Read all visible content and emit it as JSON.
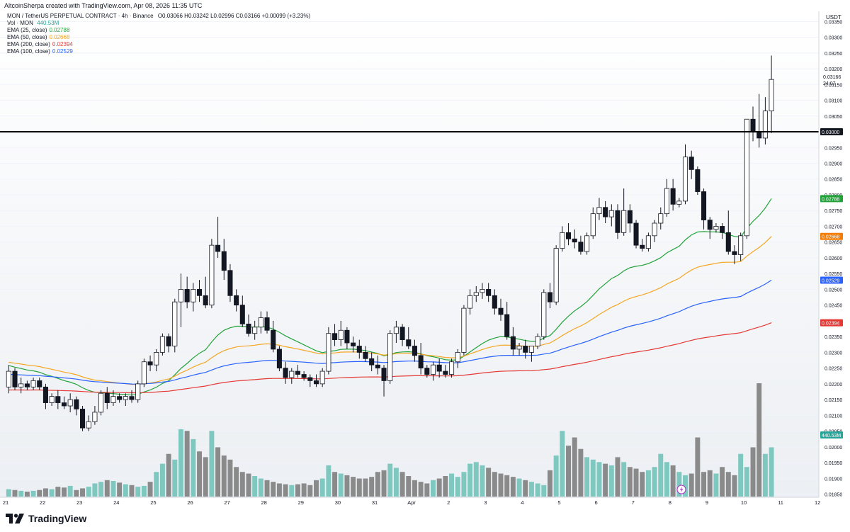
{
  "header": {
    "text": "AltcoinSherpa created with TradingView.com, Apr 08, 2026 11:35 UTC"
  },
  "legend": {
    "symbol_line": "MON / TetherUS PERPETUAL CONTRACT · 4h · Binance",
    "ohlc": "O0.03066 H0.03242 L0.02996 C0.03166 +0.00099 (+3.23%)",
    "volume_label": "Vol · MON",
    "volume_value": "440.53M",
    "ema_rows": [
      {
        "label": "EMA (25, close)",
        "value": "0.02788",
        "color": "#22a33a"
      },
      {
        "label": "EMA (50, close)",
        "value": "0.02668",
        "color": "#f5a623"
      },
      {
        "label": "EMA (200, close)",
        "value": "0.02394",
        "color": "#e53935"
      },
      {
        "label": "EMA (100, close)",
        "value": "0.02529",
        "color": "#2962ff"
      }
    ]
  },
  "axis": {
    "currency": "USDT",
    "price_ticks": [
      "0.03350",
      "0.03300",
      "0.03250",
      "0.03200",
      "0.03150",
      "0.03100",
      "0.03050",
      "0.02950",
      "0.02900",
      "0.02850",
      "0.02800",
      "0.02750",
      "0.02700",
      "0.02650",
      "0.02600",
      "0.02550",
      "0.02500",
      "0.02450",
      "0.02400",
      "0.02350",
      "0.02300",
      "0.02250",
      "0.02200",
      "0.02150",
      "0.02100",
      "0.02050",
      "0.02000",
      "0.01950",
      "0.01900",
      "0.01850"
    ],
    "date_ticks": [
      "21",
      "22",
      "23",
      "24",
      "25",
      "26",
      "27",
      "28",
      "29",
      "30",
      "31",
      "Apr",
      "2",
      "3",
      "4",
      "5",
      "6",
      "7",
      "8",
      "9",
      "10",
      "11",
      "12"
    ],
    "current_price": "0.03166",
    "countdown": "24:07",
    "level_price": "0.03000",
    "badges": [
      {
        "text": "0.02788",
        "color": "#22a33a",
        "price": 0.02788
      },
      {
        "text": "0.02668",
        "color": "#f57c00",
        "price": 0.02668
      },
      {
        "text": "0.02529",
        "color": "#2962ff",
        "price": 0.02529
      },
      {
        "text": "0.02394",
        "color": "#e53935",
        "price": 0.02394
      }
    ],
    "volume_badge": "440.53M"
  },
  "brand": {
    "name": "TradingView"
  },
  "chart_data": {
    "type": "candlestick",
    "timeframe": "4h",
    "horizontal_level": 0.03,
    "ylim": [
      0.0184,
      0.0338
    ],
    "candles": [
      {
        "o": 0.0219,
        "h": 0.0226,
        "l": 0.0217,
        "c": 0.0224
      },
      {
        "o": 0.0224,
        "h": 0.0225,
        "l": 0.0218,
        "c": 0.0219
      },
      {
        "o": 0.0219,
        "h": 0.0222,
        "l": 0.0217,
        "c": 0.022
      },
      {
        "o": 0.022,
        "h": 0.0221,
        "l": 0.0218,
        "c": 0.0219
      },
      {
        "o": 0.0219,
        "h": 0.0222,
        "l": 0.0218,
        "c": 0.0221
      },
      {
        "o": 0.0221,
        "h": 0.0222,
        "l": 0.0218,
        "c": 0.0219
      },
      {
        "o": 0.0219,
        "h": 0.022,
        "l": 0.0212,
        "c": 0.0214
      },
      {
        "o": 0.0214,
        "h": 0.0217,
        "l": 0.0213,
        "c": 0.0216
      },
      {
        "o": 0.0216,
        "h": 0.0218,
        "l": 0.0212,
        "c": 0.0214
      },
      {
        "o": 0.0214,
        "h": 0.0216,
        "l": 0.0212,
        "c": 0.0213
      },
      {
        "o": 0.0213,
        "h": 0.0217,
        "l": 0.0211,
        "c": 0.0215
      },
      {
        "o": 0.0215,
        "h": 0.0216,
        "l": 0.021,
        "c": 0.0212
      },
      {
        "o": 0.0212,
        "h": 0.0213,
        "l": 0.0205,
        "c": 0.0206
      },
      {
        "o": 0.0206,
        "h": 0.021,
        "l": 0.0205,
        "c": 0.0208
      },
      {
        "o": 0.0208,
        "h": 0.0213,
        "l": 0.0207,
        "c": 0.0211
      },
      {
        "o": 0.0211,
        "h": 0.0218,
        "l": 0.021,
        "c": 0.0217
      },
      {
        "o": 0.0217,
        "h": 0.0219,
        "l": 0.0212,
        "c": 0.0214
      },
      {
        "o": 0.0214,
        "h": 0.0218,
        "l": 0.0213,
        "c": 0.0216
      },
      {
        "o": 0.0216,
        "h": 0.0217,
        "l": 0.0214,
        "c": 0.0215
      },
      {
        "o": 0.0215,
        "h": 0.0217,
        "l": 0.0213,
        "c": 0.0216
      },
      {
        "o": 0.0216,
        "h": 0.0218,
        "l": 0.0214,
        "c": 0.0215
      },
      {
        "o": 0.0215,
        "h": 0.0221,
        "l": 0.0214,
        "c": 0.022
      },
      {
        "o": 0.022,
        "h": 0.0228,
        "l": 0.0219,
        "c": 0.0227
      },
      {
        "o": 0.0227,
        "h": 0.0229,
        "l": 0.0224,
        "c": 0.0226
      },
      {
        "o": 0.0226,
        "h": 0.0231,
        "l": 0.0224,
        "c": 0.023
      },
      {
        "o": 0.023,
        "h": 0.0236,
        "l": 0.0229,
        "c": 0.0235
      },
      {
        "o": 0.0235,
        "h": 0.0236,
        "l": 0.023,
        "c": 0.0232
      },
      {
        "o": 0.0232,
        "h": 0.0247,
        "l": 0.023,
        "c": 0.0246
      },
      {
        "o": 0.0246,
        "h": 0.0255,
        "l": 0.0238,
        "c": 0.025
      },
      {
        "o": 0.025,
        "h": 0.0254,
        "l": 0.0244,
        "c": 0.0246
      },
      {
        "o": 0.0246,
        "h": 0.0252,
        "l": 0.0243,
        "c": 0.025
      },
      {
        "o": 0.025,
        "h": 0.0253,
        "l": 0.0246,
        "c": 0.0248
      },
      {
        "o": 0.0248,
        "h": 0.0254,
        "l": 0.0244,
        "c": 0.0245
      },
      {
        "o": 0.0245,
        "h": 0.0266,
        "l": 0.0244,
        "c": 0.0264
      },
      {
        "o": 0.0264,
        "h": 0.0273,
        "l": 0.026,
        "c": 0.0262
      },
      {
        "o": 0.0262,
        "h": 0.0266,
        "l": 0.0253,
        "c": 0.0256
      },
      {
        "o": 0.0256,
        "h": 0.0258,
        "l": 0.0246,
        "c": 0.0248
      },
      {
        "o": 0.0248,
        "h": 0.025,
        "l": 0.0243,
        "c": 0.0245
      },
      {
        "o": 0.0245,
        "h": 0.0248,
        "l": 0.0238,
        "c": 0.0239
      },
      {
        "o": 0.0239,
        "h": 0.0242,
        "l": 0.0235,
        "c": 0.0236
      },
      {
        "o": 0.0236,
        "h": 0.024,
        "l": 0.0234,
        "c": 0.0238
      },
      {
        "o": 0.0238,
        "h": 0.0243,
        "l": 0.0236,
        "c": 0.0241
      },
      {
        "o": 0.0241,
        "h": 0.0243,
        "l": 0.0236,
        "c": 0.0237
      },
      {
        "o": 0.0237,
        "h": 0.024,
        "l": 0.023,
        "c": 0.0231
      },
      {
        "o": 0.0231,
        "h": 0.0232,
        "l": 0.0224,
        "c": 0.0225
      },
      {
        "o": 0.0225,
        "h": 0.0227,
        "l": 0.022,
        "c": 0.0222
      },
      {
        "o": 0.0222,
        "h": 0.0225,
        "l": 0.022,
        "c": 0.0224
      },
      {
        "o": 0.0224,
        "h": 0.0226,
        "l": 0.0222,
        "c": 0.0223
      },
      {
        "o": 0.0223,
        "h": 0.0224,
        "l": 0.0221,
        "c": 0.0222
      },
      {
        "o": 0.0222,
        "h": 0.0223,
        "l": 0.0219,
        "c": 0.0221
      },
      {
        "o": 0.0221,
        "h": 0.0223,
        "l": 0.0219,
        "c": 0.022
      },
      {
        "o": 0.022,
        "h": 0.0225,
        "l": 0.0219,
        "c": 0.0224
      },
      {
        "o": 0.0224,
        "h": 0.0238,
        "l": 0.0223,
        "c": 0.0236
      },
      {
        "o": 0.0236,
        "h": 0.0239,
        "l": 0.0232,
        "c": 0.0234
      },
      {
        "o": 0.0234,
        "h": 0.024,
        "l": 0.0232,
        "c": 0.0237
      },
      {
        "o": 0.0237,
        "h": 0.0238,
        "l": 0.0231,
        "c": 0.0233
      },
      {
        "o": 0.0233,
        "h": 0.0235,
        "l": 0.023,
        "c": 0.0232
      },
      {
        "o": 0.0232,
        "h": 0.0234,
        "l": 0.0228,
        "c": 0.023
      },
      {
        "o": 0.023,
        "h": 0.0232,
        "l": 0.0227,
        "c": 0.0228
      },
      {
        "o": 0.0228,
        "h": 0.023,
        "l": 0.0224,
        "c": 0.0226
      },
      {
        "o": 0.0226,
        "h": 0.0229,
        "l": 0.0223,
        "c": 0.0225
      },
      {
        "o": 0.0225,
        "h": 0.0226,
        "l": 0.0216,
        "c": 0.0221
      },
      {
        "o": 0.0221,
        "h": 0.0237,
        "l": 0.022,
        "c": 0.0236
      },
      {
        "o": 0.0236,
        "h": 0.024,
        "l": 0.0233,
        "c": 0.0238
      },
      {
        "o": 0.0238,
        "h": 0.0239,
        "l": 0.0232,
        "c": 0.0234
      },
      {
        "o": 0.0234,
        "h": 0.0238,
        "l": 0.0231,
        "c": 0.0232
      },
      {
        "o": 0.0232,
        "h": 0.0234,
        "l": 0.0227,
        "c": 0.0229
      },
      {
        "o": 0.0229,
        "h": 0.0233,
        "l": 0.0223,
        "c": 0.0225
      },
      {
        "o": 0.0225,
        "h": 0.0226,
        "l": 0.0222,
        "c": 0.0223
      },
      {
        "o": 0.0223,
        "h": 0.0227,
        "l": 0.0221,
        "c": 0.0226
      },
      {
        "o": 0.0226,
        "h": 0.0228,
        "l": 0.0222,
        "c": 0.0224
      },
      {
        "o": 0.0224,
        "h": 0.0226,
        "l": 0.0222,
        "c": 0.0223
      },
      {
        "o": 0.0223,
        "h": 0.0228,
        "l": 0.0222,
        "c": 0.0227
      },
      {
        "o": 0.0227,
        "h": 0.0231,
        "l": 0.0225,
        "c": 0.023
      },
      {
        "o": 0.023,
        "h": 0.0245,
        "l": 0.0229,
        "c": 0.0244
      },
      {
        "o": 0.0244,
        "h": 0.025,
        "l": 0.0242,
        "c": 0.0248
      },
      {
        "o": 0.0248,
        "h": 0.0251,
        "l": 0.0246,
        "c": 0.0249
      },
      {
        "o": 0.0249,
        "h": 0.0252,
        "l": 0.0247,
        "c": 0.025
      },
      {
        "o": 0.025,
        "h": 0.0252,
        "l": 0.0246,
        "c": 0.0248
      },
      {
        "o": 0.0248,
        "h": 0.025,
        "l": 0.0242,
        "c": 0.0244
      },
      {
        "o": 0.0244,
        "h": 0.0247,
        "l": 0.024,
        "c": 0.0242
      },
      {
        "o": 0.0242,
        "h": 0.0246,
        "l": 0.0234,
        "c": 0.0235
      },
      {
        "o": 0.0235,
        "h": 0.0238,
        "l": 0.0229,
        "c": 0.0231
      },
      {
        "o": 0.0231,
        "h": 0.0233,
        "l": 0.0229,
        "c": 0.0232
      },
      {
        "o": 0.0232,
        "h": 0.0234,
        "l": 0.0228,
        "c": 0.023
      },
      {
        "o": 0.023,
        "h": 0.0232,
        "l": 0.0227,
        "c": 0.0232
      },
      {
        "o": 0.0232,
        "h": 0.0236,
        "l": 0.0231,
        "c": 0.0235
      },
      {
        "o": 0.0235,
        "h": 0.025,
        "l": 0.0234,
        "c": 0.0249
      },
      {
        "o": 0.0249,
        "h": 0.0252,
        "l": 0.0244,
        "c": 0.0246
      },
      {
        "o": 0.0246,
        "h": 0.0264,
        "l": 0.0245,
        "c": 0.0263
      },
      {
        "o": 0.0263,
        "h": 0.027,
        "l": 0.0262,
        "c": 0.0268
      },
      {
        "o": 0.0268,
        "h": 0.0271,
        "l": 0.0264,
        "c": 0.0266
      },
      {
        "o": 0.0266,
        "h": 0.0269,
        "l": 0.0263,
        "c": 0.0265
      },
      {
        "o": 0.0265,
        "h": 0.0267,
        "l": 0.0261,
        "c": 0.0262
      },
      {
        "o": 0.0262,
        "h": 0.0268,
        "l": 0.0261,
        "c": 0.0267
      },
      {
        "o": 0.0267,
        "h": 0.0276,
        "l": 0.0266,
        "c": 0.0274
      },
      {
        "o": 0.0274,
        "h": 0.0279,
        "l": 0.0272,
        "c": 0.0276
      },
      {
        "o": 0.0276,
        "h": 0.0278,
        "l": 0.0271,
        "c": 0.0273
      },
      {
        "o": 0.0273,
        "h": 0.0277,
        "l": 0.027,
        "c": 0.0275
      },
      {
        "o": 0.0275,
        "h": 0.0277,
        "l": 0.0266,
        "c": 0.0268
      },
      {
        "o": 0.0268,
        "h": 0.0282,
        "l": 0.0267,
        "c": 0.0275
      },
      {
        "o": 0.0275,
        "h": 0.0277,
        "l": 0.0268,
        "c": 0.0271
      },
      {
        "o": 0.0271,
        "h": 0.0272,
        "l": 0.0263,
        "c": 0.0264
      },
      {
        "o": 0.0264,
        "h": 0.0266,
        "l": 0.0262,
        "c": 0.0263
      },
      {
        "o": 0.0263,
        "h": 0.0268,
        "l": 0.0262,
        "c": 0.0267
      },
      {
        "o": 0.0267,
        "h": 0.0272,
        "l": 0.0265,
        "c": 0.0271
      },
      {
        "o": 0.0271,
        "h": 0.0276,
        "l": 0.0269,
        "c": 0.0274
      },
      {
        "o": 0.0274,
        "h": 0.0285,
        "l": 0.0273,
        "c": 0.0282
      },
      {
        "o": 0.0282,
        "h": 0.0285,
        "l": 0.0275,
        "c": 0.0277
      },
      {
        "o": 0.0277,
        "h": 0.0279,
        "l": 0.0276,
        "c": 0.0278
      },
      {
        "o": 0.0278,
        "h": 0.0296,
        "l": 0.0277,
        "c": 0.0292
      },
      {
        "o": 0.0292,
        "h": 0.0294,
        "l": 0.0285,
        "c": 0.0288
      },
      {
        "o": 0.0288,
        "h": 0.0289,
        "l": 0.028,
        "c": 0.0281
      },
      {
        "o": 0.0281,
        "h": 0.0282,
        "l": 0.0269,
        "c": 0.0272
      },
      {
        "o": 0.0272,
        "h": 0.0273,
        "l": 0.0266,
        "c": 0.0269
      },
      {
        "o": 0.0269,
        "h": 0.0271,
        "l": 0.0268,
        "c": 0.027
      },
      {
        "o": 0.027,
        "h": 0.0271,
        "l": 0.0266,
        "c": 0.0268
      },
      {
        "o": 0.0268,
        "h": 0.0275,
        "l": 0.0261,
        "c": 0.0262
      },
      {
        "o": 0.0262,
        "h": 0.0264,
        "l": 0.0258,
        "c": 0.0261
      },
      {
        "o": 0.0261,
        "h": 0.0268,
        "l": 0.0259,
        "c": 0.0267
      },
      {
        "o": 0.0267,
        "h": 0.0304,
        "l": 0.0266,
        "c": 0.0304
      },
      {
        "o": 0.0304,
        "h": 0.0308,
        "l": 0.0297,
        "c": 0.03
      },
      {
        "o": 0.03,
        "h": 0.0312,
        "l": 0.0295,
        "c": 0.0298
      },
      {
        "o": 0.0298,
        "h": 0.0311,
        "l": 0.0296,
        "c": 0.03066
      },
      {
        "o": 0.03066,
        "h": 0.03242,
        "l": 0.02996,
        "c": 0.03166
      }
    ],
    "volume": [
      9,
      8,
      7,
      6,
      7,
      8,
      10,
      9,
      12,
      11,
      13,
      8,
      10,
      12,
      16,
      18,
      20,
      19,
      17,
      15,
      14,
      12,
      13,
      18,
      30,
      40,
      52,
      45,
      82,
      80,
      70,
      55,
      48,
      80,
      60,
      50,
      45,
      36,
      30,
      28,
      25,
      22,
      20,
      18,
      16,
      15,
      14,
      15,
      16,
      14,
      20,
      22,
      38,
      30,
      28,
      26,
      24,
      22,
      22,
      24,
      30,
      32,
      40,
      35,
      30,
      25,
      20,
      18,
      16,
      20,
      22,
      25,
      28,
      24,
      30,
      40,
      42,
      38,
      35,
      30,
      28,
      26,
      24,
      22,
      20,
      18,
      16,
      14,
      32,
      50,
      80,
      62,
      72,
      58,
      48,
      45,
      42,
      40,
      38,
      48,
      42,
      36,
      34,
      30,
      32,
      36,
      52,
      42,
      38,
      30,
      26,
      28,
      72,
      30,
      32,
      28,
      36,
      30,
      26,
      52,
      36,
      60,
      138,
      52,
      60
    ],
    "ema25_end": 0.02788,
    "ema50_end": 0.02668,
    "ema100_end": 0.02529,
    "ema200_end": 0.02394
  }
}
